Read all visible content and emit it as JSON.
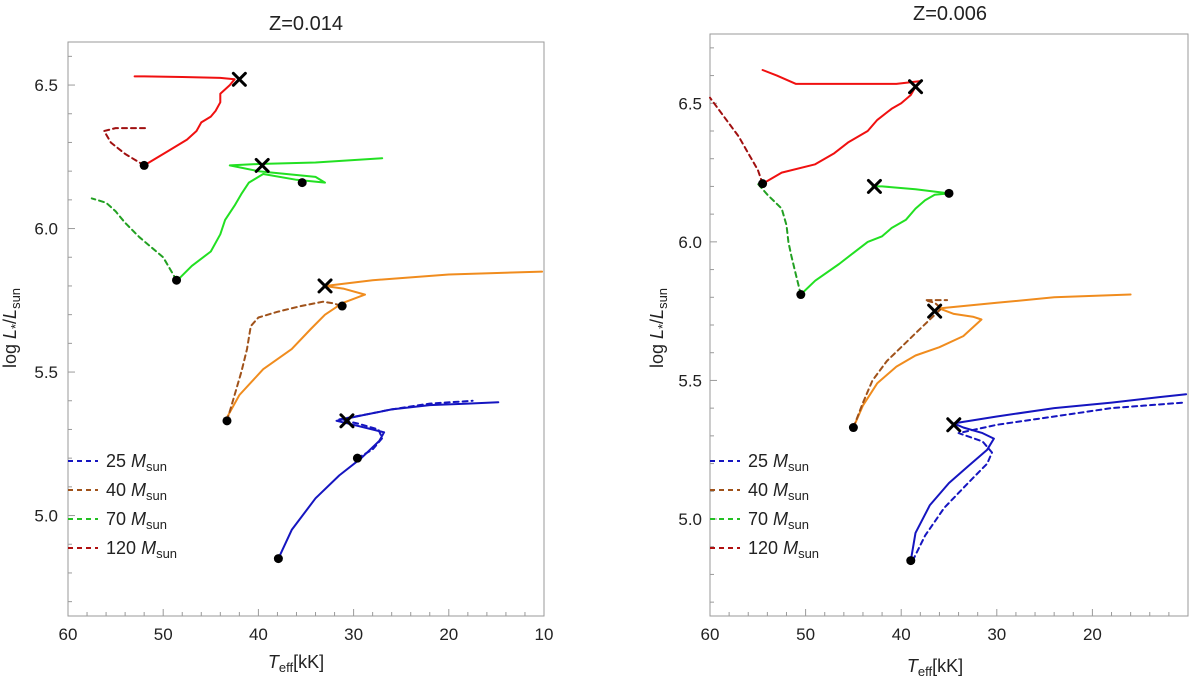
{
  "chart_data": [
    {
      "type": "line",
      "title": "Z=0.014",
      "xlabel": "T_eff[kK]",
      "ylabel": "log L_*/L_sun",
      "x_reversed": true,
      "xlim": [
        60,
        10
      ],
      "ylim": [
        4.65,
        6.65
      ],
      "xticks": [
        60,
        50,
        40,
        30,
        20,
        10
      ],
      "yticks": [
        5.0,
        5.5,
        6.0,
        6.5
      ],
      "legend_position": "bottom-left",
      "legend": [
        {
          "mass": "25",
          "unit": "M",
          "sub": "sun",
          "color": "#1515c0"
        },
        {
          "mass": "40",
          "unit": "M",
          "sub": "sun",
          "color": "#a0521a"
        },
        {
          "mass": "70",
          "unit": "M",
          "sub": "sun",
          "color": "#22c022"
        },
        {
          "mass": "120",
          "unit": "M",
          "sub": "sun",
          "color": "#b01010"
        }
      ],
      "series": [
        {
          "mass": "25",
          "style": "solid",
          "color": "#1515c0",
          "x": [
            37.9,
            36.5,
            34.0,
            31.5,
            29.2,
            27.3,
            26.8,
            28.0,
            30.5,
            31.8,
            29.0,
            26.0,
            22.0,
            18.0,
            14.8
          ],
          "y": [
            4.85,
            4.95,
            5.06,
            5.14,
            5.2,
            5.26,
            5.29,
            5.3,
            5.32,
            5.33,
            5.35,
            5.37,
            5.385,
            5.39,
            5.395
          ]
        },
        {
          "mass": "25",
          "style": "dashed",
          "color": "#1515c0",
          "x": [
            29.6,
            28.0,
            27.0,
            27.4,
            29.5,
            31.5,
            29.0,
            26.0,
            22.0,
            17.5
          ],
          "y": [
            5.2,
            5.23,
            5.27,
            5.3,
            5.32,
            5.335,
            5.35,
            5.37,
            5.39,
            5.4
          ]
        },
        {
          "mass": "25",
          "style": "point",
          "color": "#000000",
          "x": [
            37.9,
            29.6
          ],
          "y": [
            4.85,
            5.2
          ]
        },
        {
          "mass": "25",
          "style": "cross",
          "color": "#000000",
          "x": [
            30.7
          ],
          "y": [
            5.33
          ]
        },
        {
          "mass": "40",
          "style": "solid",
          "color": "#f08c1e",
          "x": [
            43.5,
            42.0,
            39.5,
            36.5,
            34.5,
            33.0,
            31.2,
            28.8,
            31.0,
            33.0,
            28.0,
            20.0,
            10.2
          ],
          "y": [
            5.33,
            5.42,
            5.51,
            5.58,
            5.65,
            5.7,
            5.74,
            5.77,
            5.79,
            5.8,
            5.82,
            5.84,
            5.85
          ]
        },
        {
          "mass": "40",
          "style": "dashed",
          "color": "#a0521a",
          "x": [
            43.3,
            42.5,
            41.8,
            41.2,
            40.8,
            40.0,
            38.0,
            35.5,
            33.2,
            32.2,
            31.2
          ],
          "y": [
            5.33,
            5.42,
            5.5,
            5.58,
            5.66,
            5.69,
            5.71,
            5.73,
            5.745,
            5.74,
            5.73
          ]
        },
        {
          "mass": "40",
          "style": "point",
          "color": "#000000",
          "x": [
            43.3,
            31.2
          ],
          "y": [
            5.33,
            5.73
          ]
        },
        {
          "mass": "40",
          "style": "cross",
          "color": "#000000",
          "x": [
            33.0
          ],
          "y": [
            5.8
          ]
        },
        {
          "mass": "70",
          "style": "solid",
          "color": "#22e022",
          "x": [
            48.5,
            47.0,
            45.0,
            44.0,
            43.5,
            42.5,
            41.8,
            41.0,
            39.5,
            36.0,
            33.0,
            34.0,
            40.0,
            43.0,
            40.0,
            34.0,
            27.0
          ],
          "y": [
            5.82,
            5.87,
            5.92,
            5.98,
            6.03,
            6.08,
            6.12,
            6.16,
            6.19,
            6.17,
            6.16,
            6.18,
            6.2,
            6.22,
            6.225,
            6.23,
            6.245
          ]
        },
        {
          "mass": "70",
          "style": "dashed",
          "color": "#22a022",
          "x": [
            48.6,
            50.0,
            52.5,
            54.0,
            55.0,
            56.0,
            57.5
          ],
          "y": [
            5.82,
            5.9,
            5.97,
            6.02,
            6.06,
            6.09,
            6.105
          ]
        },
        {
          "mass": "70",
          "style": "point",
          "color": "#000000",
          "x": [
            48.6,
            35.4
          ],
          "y": [
            5.82,
            6.16
          ]
        },
        {
          "mass": "70",
          "style": "cross",
          "color": "#000000",
          "x": [
            39.6
          ],
          "y": [
            6.22
          ]
        },
        {
          "mass": "120",
          "style": "solid",
          "color": "#f01010",
          "x": [
            52.0,
            49.5,
            47.5,
            46.5,
            46.0,
            45.0,
            44.5,
            44.0,
            44.0,
            43.0,
            42.5,
            44.0,
            48.0,
            52.0,
            53.0
          ],
          "y": [
            6.22,
            6.27,
            6.31,
            6.34,
            6.37,
            6.39,
            6.41,
            6.44,
            6.47,
            6.5,
            6.52,
            6.525,
            6.528,
            6.53,
            6.53
          ]
        },
        {
          "mass": "120",
          "style": "dashed",
          "color": "#a01010",
          "x": [
            52.0,
            54.0,
            55.5,
            56.2,
            55.0,
            51.5
          ],
          "y": [
            6.22,
            6.26,
            6.3,
            6.34,
            6.35,
            6.35
          ]
        },
        {
          "mass": "120",
          "style": "point",
          "color": "#000000",
          "x": [
            52.0
          ],
          "y": [
            6.22
          ]
        },
        {
          "mass": "120",
          "style": "cross",
          "color": "#000000",
          "x": [
            42.0
          ],
          "y": [
            6.52
          ]
        }
      ]
    },
    {
      "type": "line",
      "title": "Z=0.006",
      "xlabel": "T_eff[kK]",
      "ylabel": "log L_*/L_sun",
      "x_reversed": true,
      "xlim": [
        60,
        10
      ],
      "ylim": [
        4.65,
        6.75
      ],
      "xticks": [
        60,
        50,
        40,
        30,
        20
      ],
      "yticks": [
        5.0,
        5.5,
        6.0,
        6.5
      ],
      "legend_position": "bottom-left",
      "legend": [
        {
          "mass": "25",
          "unit": "M",
          "sub": "sun",
          "color": "#1515c0"
        },
        {
          "mass": "40",
          "unit": "M",
          "sub": "sun",
          "color": "#a0521a"
        },
        {
          "mass": "70",
          "unit": "M",
          "sub": "sun",
          "color": "#22c022"
        },
        {
          "mass": "120",
          "unit": "M",
          "sub": "sun",
          "color": "#b01010"
        }
      ],
      "series": [
        {
          "mass": "25",
          "style": "solid",
          "color": "#1515c0",
          "x": [
            39.0,
            38.5,
            37.0,
            35.0,
            33.0,
            31.0,
            30.3,
            31.5,
            33.5,
            34.5,
            30.0,
            24.0,
            18.0,
            13.0,
            10.2
          ],
          "y": [
            4.85,
            4.95,
            5.05,
            5.13,
            5.19,
            5.25,
            5.29,
            5.31,
            5.33,
            5.345,
            5.37,
            5.4,
            5.42,
            5.44,
            5.45
          ]
        },
        {
          "mass": "25",
          "style": "dashed",
          "color": "#1515c0",
          "x": [
            38.8,
            37.5,
            35.5,
            33.0,
            31.0,
            30.5,
            31.5,
            34.0,
            30.0,
            24.0,
            18.0,
            10.5
          ],
          "y": [
            4.85,
            4.94,
            5.04,
            5.13,
            5.2,
            5.24,
            5.28,
            5.31,
            5.34,
            5.37,
            5.4,
            5.42
          ]
        },
        {
          "mass": "25",
          "style": "point",
          "color": "#000000",
          "x": [
            39.0
          ],
          "y": [
            4.85
          ]
        },
        {
          "mass": "25",
          "style": "cross",
          "color": "#000000",
          "x": [
            34.5
          ],
          "y": [
            5.34
          ]
        },
        {
          "mass": "40",
          "style": "solid",
          "color": "#f08c1e",
          "x": [
            45.0,
            44.0,
            42.5,
            40.5,
            38.5,
            36.0,
            33.5,
            31.6,
            32.5,
            34.5,
            36.0,
            30.0,
            24.0,
            16.0
          ],
          "y": [
            5.33,
            5.41,
            5.49,
            5.55,
            5.59,
            5.62,
            5.66,
            5.72,
            5.73,
            5.74,
            5.76,
            5.78,
            5.8,
            5.81
          ]
        },
        {
          "mass": "40",
          "style": "dashed",
          "color": "#a0521a",
          "x": [
            45.0,
            44.0,
            43.0,
            41.5,
            40.0,
            38.5,
            37.0,
            35.8,
            36.5,
            37.5,
            35.2
          ],
          "y": [
            5.33,
            5.42,
            5.5,
            5.57,
            5.62,
            5.67,
            5.72,
            5.76,
            5.78,
            5.79,
            5.79
          ]
        },
        {
          "mass": "40",
          "style": "point",
          "color": "#000000",
          "x": [
            45.0
          ],
          "y": [
            5.33
          ]
        },
        {
          "mass": "40",
          "style": "cross",
          "color": "#000000",
          "x": [
            36.5
          ],
          "y": [
            5.75
          ]
        },
        {
          "mass": "70",
          "style": "solid",
          "color": "#22e022",
          "x": [
            50.5,
            49.0,
            46.5,
            45.0,
            43.5,
            42.0,
            41.0,
            39.5,
            38.5,
            37.5,
            36.5,
            35.0,
            38.5,
            42.0,
            43.0
          ],
          "y": [
            5.81,
            5.86,
            5.92,
            5.96,
            6.0,
            6.02,
            6.05,
            6.08,
            6.12,
            6.15,
            6.17,
            6.175,
            6.19,
            6.2,
            6.2
          ]
        },
        {
          "mass": "70",
          "style": "dashed",
          "color": "#22a022",
          "x": [
            50.5,
            51.0,
            51.5,
            51.8,
            52.0,
            52.5,
            54.0,
            55.0
          ],
          "y": [
            5.81,
            5.88,
            5.95,
            6.0,
            6.06,
            6.12,
            6.17,
            6.21
          ]
        },
        {
          "mass": "70",
          "style": "point",
          "color": "#000000",
          "x": [
            50.5,
            35.0
          ],
          "y": [
            5.81,
            6.175
          ]
        },
        {
          "mass": "70",
          "style": "cross",
          "color": "#000000",
          "x": [
            42.8
          ],
          "y": [
            6.2
          ]
        },
        {
          "mass": "120",
          "style": "solid",
          "color": "#f01010",
          "x": [
            54.5,
            52.5,
            49.0,
            47.0,
            45.5,
            43.5,
            42.5,
            41.0,
            40.0,
            39.0,
            38.5,
            38.0,
            40.5,
            43.5,
            46.0,
            48.5,
            51.0,
            53.0,
            54.5
          ],
          "y": [
            6.21,
            6.25,
            6.28,
            6.32,
            6.36,
            6.4,
            6.44,
            6.48,
            6.5,
            6.53,
            6.56,
            6.58,
            6.57,
            6.57,
            6.57,
            6.57,
            6.57,
            6.6,
            6.62
          ]
        },
        {
          "mass": "120",
          "style": "dashed",
          "color": "#a01010",
          "x": [
            54.5,
            55.0,
            56.0,
            57.0,
            58.5,
            60.0
          ],
          "y": [
            6.21,
            6.26,
            6.32,
            6.38,
            6.45,
            6.52
          ]
        },
        {
          "mass": "120",
          "style": "point",
          "color": "#000000",
          "x": [
            54.5
          ],
          "y": [
            6.21
          ]
        },
        {
          "mass": "120",
          "style": "cross",
          "color": "#000000",
          "x": [
            38.5
          ],
          "y": [
            6.56
          ]
        }
      ]
    }
  ]
}
